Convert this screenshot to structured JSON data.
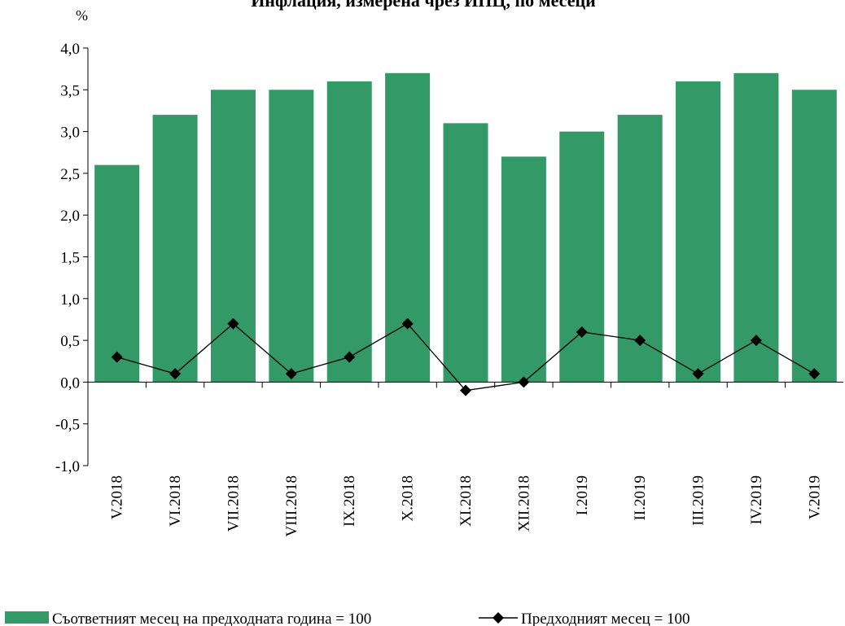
{
  "chart_data": {
    "type": "bar",
    "title": "Инфлация, измерена чрез ИПЦ, по месеци",
    "ylabel": "%",
    "ylim": [
      -1.0,
      4.0
    ],
    "yticks": [
      "-1,0",
      "-0,5",
      "0,0",
      "0,5",
      "1,0",
      "1,5",
      "2,0",
      "2,5",
      "3,0",
      "3,5",
      "4,0"
    ],
    "grid": false,
    "legend_position": "bottom",
    "categories": [
      "V.2018",
      "VI.2018",
      "VII.2018",
      "VIII.2018",
      "IX.2018",
      "X.2018",
      "XI.2018",
      "XII.2018",
      "I.2019",
      "II.2019",
      "III.2019",
      "IV.2019",
      "V.2019"
    ],
    "series": [
      {
        "name": "Съответният месец на предходната година = 100",
        "type": "bar",
        "color": "#339966",
        "values": [
          2.6,
          3.2,
          3.5,
          3.5,
          3.6,
          3.7,
          3.1,
          2.7,
          3.0,
          3.2,
          3.6,
          3.7,
          3.5
        ]
      },
      {
        "name": "Предходният месец = 100",
        "type": "line",
        "color": "#000000",
        "values": [
          0.3,
          0.1,
          0.7,
          0.1,
          0.3,
          0.7,
          -0.1,
          0.0,
          0.6,
          0.5,
          0.1,
          0.5,
          0.1
        ]
      }
    ]
  }
}
